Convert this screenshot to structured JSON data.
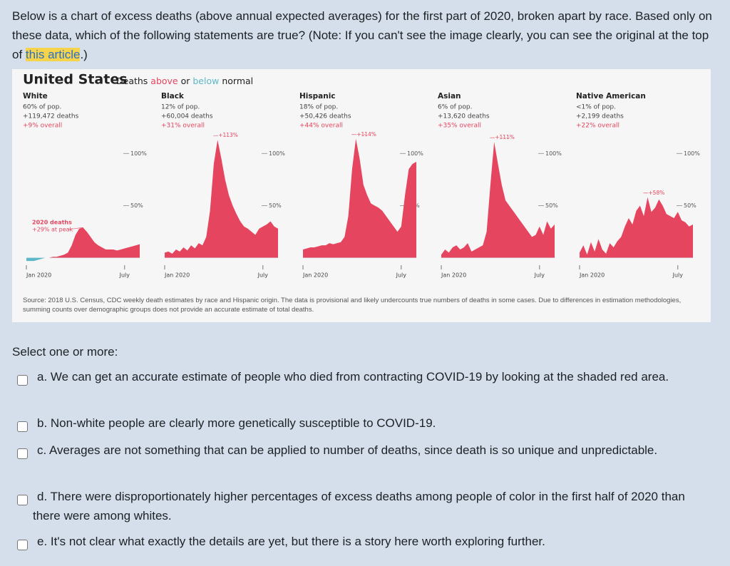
{
  "question": {
    "text": "Below is a chart of excess deaths (above annual expected averages) for the first part of 2020, broken apart by race. Based only on these data, which of the following statements are true? (Note: If you can't see the image clearly, you can see the original at the top of ",
    "link": "this article",
    "end": ".)"
  },
  "chart_data": {
    "type": "area",
    "title": "United States",
    "subtitle": [
      "Deaths",
      "above",
      "or",
      "below",
      "normal"
    ],
    "colors": {
      "above": "#e5455f",
      "below": "#5cb8c8"
    },
    "xlim": [
      0,
      30
    ],
    "xticks": [
      {
        "value": 0,
        "label": "Jan 2020"
      },
      {
        "value": 26,
        "label": "July"
      }
    ],
    "ylim": [
      -5,
      120
    ],
    "yticks": [
      {
        "value": 50,
        "label": "50%"
      },
      {
        "value": 100,
        "label": "100%"
      }
    ],
    "panels": [
      {
        "name": "White",
        "pop": "60% of pop.",
        "deaths": "+119,472 deaths",
        "overall": "+9% overall",
        "note": "2020 deaths",
        "peak_label": "+29% at peak",
        "values": [
          -3,
          -3,
          -3,
          -2,
          -1,
          0,
          0,
          1,
          1,
          2,
          3,
          5,
          12,
          22,
          28,
          29,
          25,
          20,
          15,
          12,
          10,
          8,
          8,
          8,
          7,
          8,
          9,
          10,
          11,
          12,
          13
        ]
      },
      {
        "name": "Black",
        "pop": "12% of pop.",
        "deaths": "+60,004 deaths",
        "overall": "+31% overall",
        "peak_label": "+113%",
        "values": [
          5,
          6,
          4,
          8,
          6,
          10,
          7,
          12,
          9,
          14,
          12,
          20,
          45,
          90,
          113,
          95,
          75,
          60,
          50,
          42,
          35,
          30,
          28,
          25,
          22,
          28,
          30,
          32,
          35,
          30,
          28
        ]
      },
      {
        "name": "Hispanic",
        "pop": "18% of pop.",
        "deaths": "+50,426 deaths",
        "overall": "+44% overall",
        "peak_label": "+114%",
        "values": [
          8,
          9,
          10,
          10,
          11,
          12,
          12,
          14,
          13,
          14,
          15,
          20,
          40,
          85,
          114,
          95,
          70,
          60,
          52,
          50,
          48,
          45,
          40,
          35,
          30,
          25,
          30,
          60,
          85,
          90,
          92
        ]
      },
      {
        "name": "Asian",
        "pop": "6% of pop.",
        "deaths": "+13,620 deaths",
        "overall": "+35% overall",
        "peak_label": "+111%",
        "values": [
          3,
          8,
          5,
          10,
          12,
          8,
          10,
          14,
          6,
          8,
          10,
          12,
          25,
          70,
          111,
          90,
          70,
          55,
          50,
          45,
          40,
          35,
          30,
          25,
          20,
          22,
          30,
          22,
          35,
          28,
          32
        ]
      },
      {
        "name": "Native American",
        "pop": "<1% of pop.",
        "deaths": "+2,199 deaths",
        "overall": "+22% overall",
        "peak_label": "+58%",
        "values": [
          5,
          12,
          3,
          15,
          6,
          18,
          8,
          4,
          14,
          10,
          16,
          20,
          30,
          38,
          32,
          45,
          50,
          40,
          58,
          44,
          48,
          56,
          50,
          42,
          40,
          38,
          44,
          36,
          34,
          30,
          32
        ]
      }
    ],
    "source": "Source: 2018 U.S. Census, CDC weekly death estimates by race and Hispanic origin. The data is provisional and likely undercounts true numbers of deaths in some cases. Due to differences in estimation methodologies, summing counts over demographic groups does not provide an accurate estimate of total deaths."
  },
  "options": {
    "prompt": "Select one or more:",
    "items": [
      "a. We can get an accurate estimate of people who died from contracting COVID-19 by looking at the shaded red area.",
      "b. Non-white people are clearly more genetically susceptible to COVID-19.",
      "c. Averages are not something that can be applied to number of deaths, since death is so unique and unpredictable.",
      "d. There were disproportionately higher percentages of excess deaths among people of color in the first half of 2020 than there were among whites.",
      "e. It's not clear what exactly the details are yet, but there is a story here worth exploring further."
    ]
  }
}
